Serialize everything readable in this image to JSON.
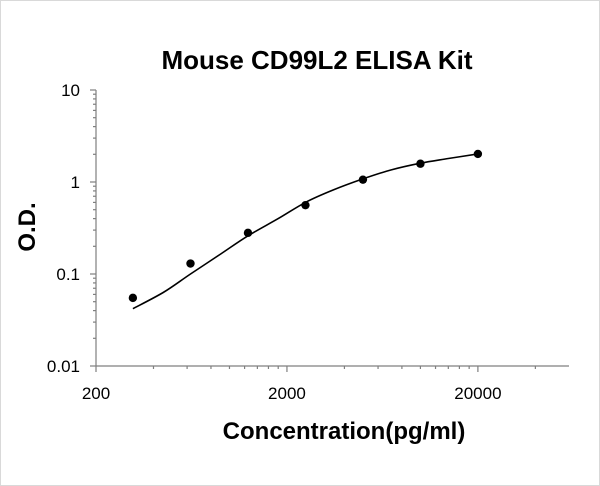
{
  "chart_data": {
    "type": "scatter",
    "title": "Mouse CD99L2 ELISA Kit",
    "xlabel": "Concentration(pg/ml)",
    "ylabel": "O.D.",
    "x_scale": "log",
    "y_scale": "log",
    "xlim": [
      200,
      60000
    ],
    "ylim": [
      0.01,
      10
    ],
    "x_ticks": [
      200,
      2000,
      20000
    ],
    "x_tick_labels": [
      "200",
      "2000",
      "20000"
    ],
    "y_ticks": [
      0.01,
      0.1,
      1,
      10
    ],
    "y_tick_labels": [
      "0.01",
      "0.1",
      "1",
      "10"
    ],
    "grid": false,
    "legend": "none",
    "series": [
      {
        "points": [
          {
            "x": 312,
            "y": 0.055
          },
          {
            "x": 625,
            "y": 0.13
          },
          {
            "x": 1250,
            "y": 0.28
          },
          {
            "x": 2500,
            "y": 0.56
          },
          {
            "x": 5000,
            "y": 1.06
          },
          {
            "x": 10000,
            "y": 1.58
          },
          {
            "x": 20000,
            "y": 2.02
          }
        ]
      }
    ],
    "fit_curve": [
      {
        "x": 312,
        "y": 0.042
      },
      {
        "x": 450,
        "y": 0.063
      },
      {
        "x": 625,
        "y": 0.1
      },
      {
        "x": 900,
        "y": 0.165
      },
      {
        "x": 1250,
        "y": 0.26
      },
      {
        "x": 1800,
        "y": 0.4
      },
      {
        "x": 2500,
        "y": 0.6
      },
      {
        "x": 3500,
        "y": 0.82
      },
      {
        "x": 5000,
        "y": 1.08
      },
      {
        "x": 7000,
        "y": 1.35
      },
      {
        "x": 10000,
        "y": 1.6
      },
      {
        "x": 14000,
        "y": 1.8
      },
      {
        "x": 20000,
        "y": 2.02
      }
    ]
  }
}
